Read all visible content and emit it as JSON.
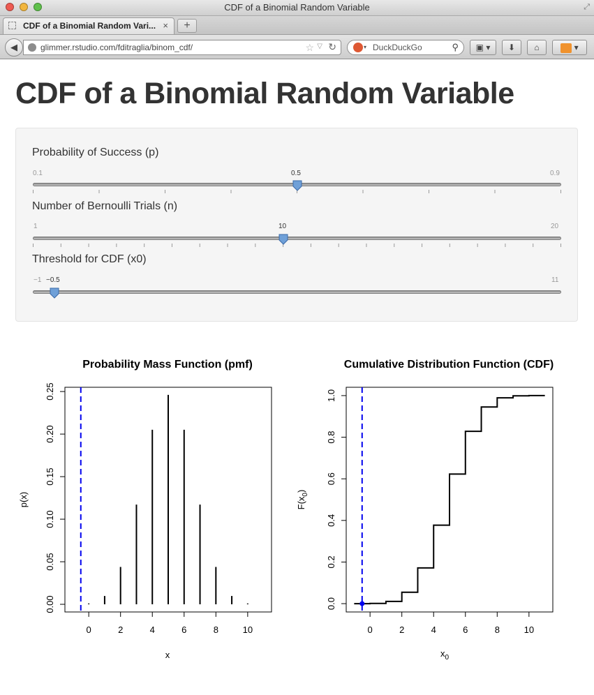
{
  "window": {
    "title": "CDF of a Binomial Random Variable",
    "tab_label": "CDF of a Binomial Random Vari...",
    "tab_close": "×",
    "new_tab": "+",
    "url": "glimmer.rstudio.com/fditraglia/binom_cdf/",
    "search_placeholder": "DuckDuckGo",
    "icons": [
      "back-arrow-icon",
      "globe-icon",
      "star-icon",
      "reload-icon",
      "duck-icon",
      "magnifier-icon",
      "bookmarks-icon",
      "download-icon",
      "home-icon",
      "rss-icon"
    ]
  },
  "page": {
    "title": "CDF of a Binomial Random Variable"
  },
  "sliders": [
    {
      "label": "Probability of Success (p)",
      "min": 0.1,
      "max": 0.9,
      "value": 0.5,
      "min_label": "0.1",
      "max_label": "0.9",
      "value_label": "0.5",
      "ticks": 9
    },
    {
      "label": "Number of Bernoulli Trials (n)",
      "min": 1,
      "max": 20,
      "value": 10,
      "min_label": "1",
      "max_label": "20",
      "value_label": "10",
      "ticks": 20
    },
    {
      "label": "Threshold for CDF (x0)",
      "min": -1,
      "max": 11,
      "value": -0.5,
      "min_label": "−1",
      "max_label": "11",
      "value_label": "−0.5",
      "ticks": 0
    }
  ],
  "colors": {
    "accent": "#0000ee",
    "handle": "#6fa0d8",
    "line": "#000000"
  },
  "chart_data": [
    {
      "type": "bar",
      "title": "Probability Mass Function (pmf)",
      "xlabel": "x",
      "ylabel": "p(x)",
      "x": [
        0,
        1,
        2,
        3,
        4,
        5,
        6,
        7,
        8,
        9,
        10
      ],
      "values": [
        0.001,
        0.0098,
        0.0439,
        0.1172,
        0.2051,
        0.2461,
        0.2051,
        0.1172,
        0.0439,
        0.0098,
        0.001
      ],
      "xlim": [
        -1.5,
        11.5
      ],
      "ylim": [
        -0.009,
        0.255
      ],
      "xticks": [
        0,
        2,
        4,
        6,
        8,
        10
      ],
      "xtick_labels": [
        "0",
        "2",
        "4",
        "6",
        "8",
        "10"
      ],
      "yticks": [
        0,
        0.05,
        0.1,
        0.15,
        0.2,
        0.25
      ],
      "ytick_labels": [
        "0.00",
        "0.05",
        "0.10",
        "0.15",
        "0.20",
        "0.25"
      ],
      "threshold": -0.5
    },
    {
      "type": "line",
      "title": "Cumulative Distribution Function (CDF)",
      "xlabel": "x",
      "xlabel_sub": "0",
      "ylabel": "F(x",
      "ylabel_sub": "0",
      "ylabel_close": ")",
      "x": [
        -1,
        0,
        1,
        2,
        3,
        4,
        5,
        6,
        7,
        8,
        9,
        10,
        11
      ],
      "values": [
        0,
        0.001,
        0.0107,
        0.0547,
        0.1719,
        0.377,
        0.623,
        0.8281,
        0.9453,
        0.9893,
        0.999,
        1.0,
        1.0
      ],
      "xlim": [
        -1.5,
        11.5
      ],
      "ylim": [
        -0.04,
        1.04
      ],
      "xticks": [
        0,
        2,
        4,
        6,
        8,
        10
      ],
      "xtick_labels": [
        "0",
        "2",
        "4",
        "6",
        "8",
        "10"
      ],
      "yticks": [
        0,
        0.2,
        0.4,
        0.6,
        0.8,
        1.0
      ],
      "ytick_labels": [
        "0.0",
        "0.2",
        "0.4",
        "0.6",
        "0.8",
        "1.0"
      ],
      "threshold": -0.5,
      "threshold_value": 0
    }
  ]
}
